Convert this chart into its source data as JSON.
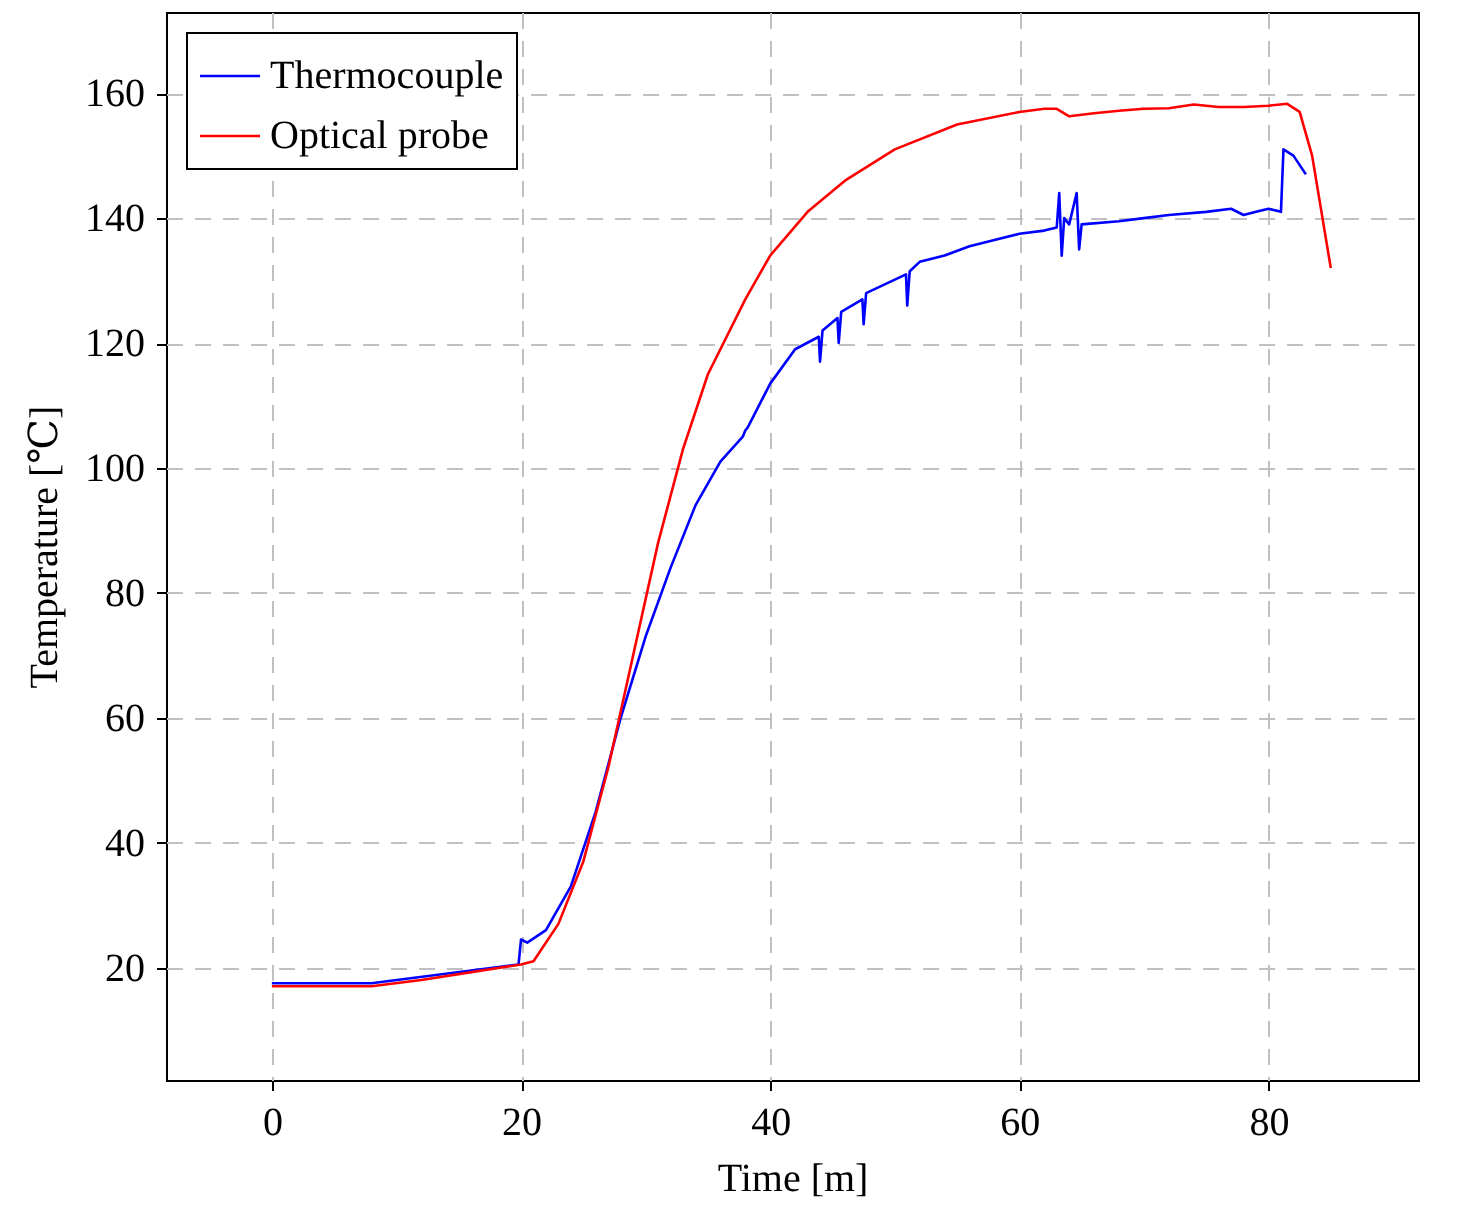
{
  "chart_data": {
    "type": "line",
    "xlabel": "Time [m]",
    "ylabel": "Temperature [℃]",
    "xlim": [
      -8.5,
      92
    ],
    "ylim": [
      2,
      173
    ],
    "xticks": [
      0,
      20,
      40,
      60,
      80
    ],
    "yticks": [
      20,
      40,
      60,
      80,
      100,
      120,
      140,
      160
    ],
    "grid": true,
    "legend": "top left",
    "line_style": "solid",
    "marker": "none",
    "series": [
      {
        "name": "Thermocouple",
        "color": "#0000ff",
        "x": [
          0,
          8,
          19.8,
          20,
          20.5,
          22,
          24,
          26,
          28,
          30,
          32,
          34,
          36,
          37.8,
          38,
          38.2,
          40,
          42,
          43.9,
          44,
          44.2,
          45.4,
          45.5,
          45.7,
          47.4,
          47.5,
          47.7,
          50.9,
          51,
          51.2,
          52,
          54,
          56,
          58,
          60,
          62,
          63,
          63.2,
          63.4,
          63.6,
          64,
          64.6,
          64.8,
          65,
          68,
          70,
          72,
          75,
          77,
          78,
          79,
          80,
          81,
          81.2,
          82,
          83
        ],
        "values": [
          17.5,
          17.5,
          20.5,
          24.5,
          24,
          26,
          33,
          45,
          60,
          73,
          84,
          94,
          101,
          105,
          106,
          106.5,
          113.5,
          119,
          121,
          117,
          122,
          124,
          120,
          125,
          127,
          123,
          128,
          131,
          126,
          131.5,
          133,
          134,
          135.5,
          136.5,
          137.5,
          138,
          138.5,
          144,
          134,
          140,
          139,
          144,
          135,
          139,
          139.5,
          140,
          140.5,
          141,
          141.5,
          140.5,
          141,
          141.5,
          141,
          151,
          150,
          147
        ]
      },
      {
        "name": "Optical probe",
        "color": "#ff0000",
        "x": [
          0,
          8,
          12,
          20,
          21,
          23,
          25,
          27,
          29,
          31,
          33,
          35,
          38,
          40,
          43,
          46,
          50,
          55,
          60,
          62,
          63,
          64,
          66,
          68,
          70,
          72,
          74,
          76,
          78,
          80,
          81.5,
          82.5,
          83.5,
          85
        ],
        "values": [
          17,
          17,
          18,
          20.5,
          21,
          27,
          37,
          52,
          70,
          88,
          103,
          115,
          127,
          134,
          141,
          146,
          151,
          155,
          157,
          157.5,
          157.5,
          156.3,
          156.8,
          157.2,
          157.5,
          157.6,
          158.2,
          157.8,
          157.8,
          158,
          158.3,
          157,
          150,
          132
        ]
      }
    ]
  }
}
